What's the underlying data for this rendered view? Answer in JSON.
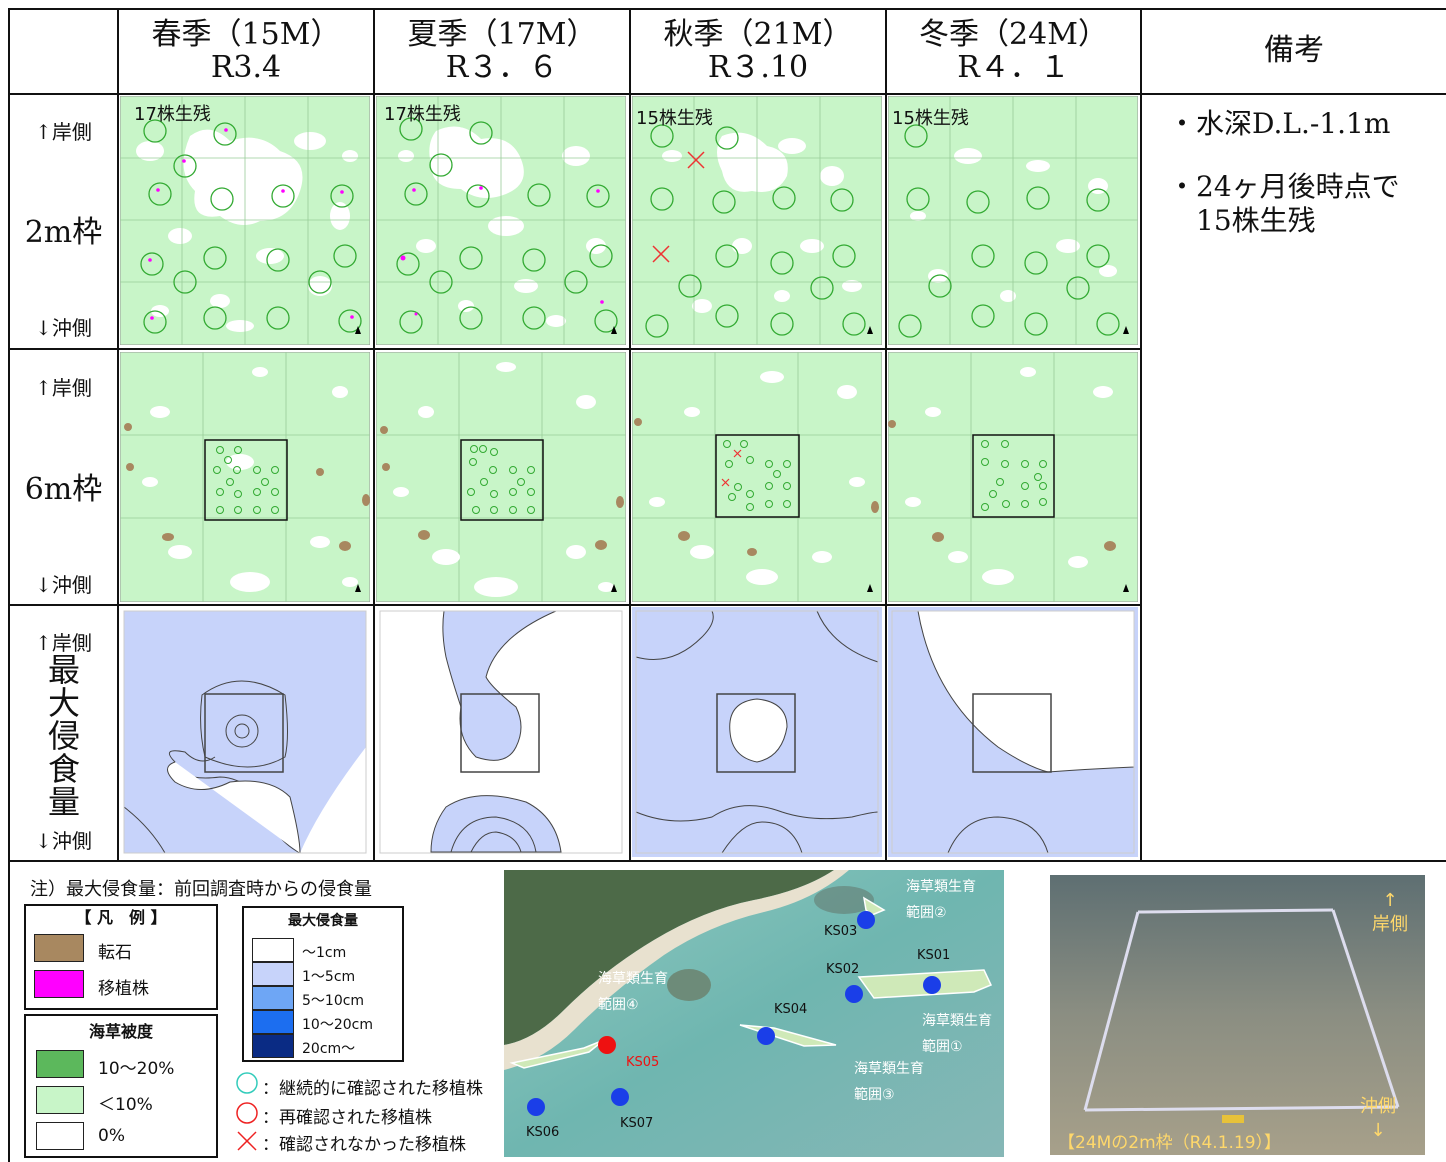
{
  "header": {
    "seasons": [
      {
        "name": "春季（15M）",
        "date": "R3.4"
      },
      {
        "name": "夏季（17M）",
        "date": "R３．６"
      },
      {
        "name": "秋季（21M）",
        "date": "R３.10"
      },
      {
        "name": "冬季（24M）",
        "date": "R４．１"
      }
    ],
    "remarks_title": "備考"
  },
  "rows": {
    "shore_label": "↑岸側",
    "offshore_label": "↓沖側",
    "row1_label": "2m枠",
    "row2_label": "6m枠",
    "row3_label": "最大侵食量"
  },
  "survival_labels": [
    "17株生残",
    "17株生残",
    "15株生残",
    "15株生残"
  ],
  "remarks": {
    "item1": "・水深D.L.-1.1m",
    "item2_line1": "・24ヶ月後時点で",
    "item2_line2": "15株生残"
  },
  "legend": {
    "note": "注）最大侵食量：前回調査時からの侵食量",
    "title": "【 凡　例 】",
    "boulder": "転石",
    "transplant": "移植株",
    "seaweed_title": "海草被度",
    "cov_high": "10～20%",
    "cov_low": "＜10%",
    "cov_zero": "0%",
    "erosion_title": "最大侵食量",
    "erosion_levels": [
      "～1cm",
      "1～5cm",
      "5～10cm",
      "10～20cm",
      "20cm～"
    ],
    "sym_green": "：継続的に確認された移植株",
    "sym_red": "：再確認された移植株",
    "sym_cross": "：確認されなかった移植株"
  },
  "map": {
    "stations": [
      "KS01",
      "KS02",
      "KS03",
      "KS04",
      "KS05",
      "KS06",
      "KS07"
    ],
    "area1": [
      "海草類生育",
      "範囲①"
    ],
    "area2": [
      "海草類生育",
      "範囲②"
    ],
    "area3": [
      "海草類生育",
      "範囲③"
    ],
    "area4": [
      "海草類生育",
      "範囲④"
    ]
  },
  "photo": {
    "shore": [
      "↑",
      "岸側"
    ],
    "offshore": [
      "沖側",
      "↓"
    ],
    "caption": "【24Mの2m枠（R4.1.19）】"
  },
  "colors": {
    "seagrass_low": "#c8f5c8",
    "erosion_blue": "#c7d3fa",
    "boulder": "#a88860",
    "transplant": "#ff00ff"
  }
}
